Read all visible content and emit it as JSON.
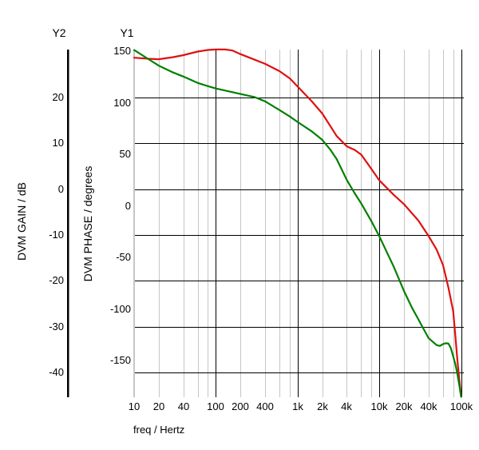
{
  "chart_data": {
    "type": "line",
    "title": "",
    "x_axis": {
      "label": "freq / Hertz",
      "scale": "log",
      "min": 10,
      "max": 100000,
      "tick_values": [
        10,
        20,
        40,
        100,
        200,
        400,
        1000,
        2000,
        4000,
        10000,
        20000,
        40000,
        100000
      ],
      "tick_labels": [
        "10",
        "20",
        "40",
        "100",
        "200",
        "400",
        "1k",
        "2k",
        "4k",
        "10k",
        "20k",
        "40k",
        "100k"
      ],
      "minor_grid_multiples": [
        2,
        4,
        6,
        8
      ],
      "major_grid_values": [
        100,
        1000,
        10000,
        100000
      ]
    },
    "y1_axis": {
      "name": "Y1",
      "label": "DVM PHASE / degrees",
      "ticks": [
        150,
        100,
        50,
        0,
        -50,
        -100,
        -150
      ],
      "top_value": 151.9,
      "bottom_value": -185.3,
      "gridlines": false
    },
    "y2_axis": {
      "name": "Y2",
      "label": "DVM GAIN / dB",
      "ticks": [
        20,
        10,
        0,
        -10,
        -20,
        -30,
        -40
      ],
      "top_value": 30.5,
      "bottom_value": -45.4,
      "gridlines": true
    },
    "grid_color": "#c6c6c6",
    "axis_color": "#000000",
    "series": [
      {
        "name": "DVM PHASE",
        "axis": "y1",
        "color": "#e01010",
        "points": [
          [
            10,
            144
          ],
          [
            15,
            143
          ],
          [
            20,
            142.5
          ],
          [
            30,
            144.5
          ],
          [
            40,
            146.5
          ],
          [
            60,
            150
          ],
          [
            80,
            151.5
          ],
          [
            100,
            152
          ],
          [
            130,
            152
          ],
          [
            160,
            151
          ],
          [
            200,
            147.5
          ],
          [
            300,
            142
          ],
          [
            400,
            138
          ],
          [
            600,
            131
          ],
          [
            800,
            124
          ],
          [
            1000,
            116
          ],
          [
            1500,
            101.5
          ],
          [
            2000,
            90
          ],
          [
            2500,
            78
          ],
          [
            3000,
            68
          ],
          [
            4000,
            58
          ],
          [
            5000,
            54.5
          ],
          [
            6000,
            50
          ],
          [
            8000,
            36
          ],
          [
            10000,
            25
          ],
          [
            15000,
            11
          ],
          [
            20000,
            2
          ],
          [
            30000,
            -14
          ],
          [
            40000,
            -29
          ],
          [
            50000,
            -42
          ],
          [
            60000,
            -57
          ],
          [
            70000,
            -79
          ],
          [
            80000,
            -102
          ],
          [
            85000,
            -126
          ],
          [
            90000,
            -149
          ],
          [
            95000,
            -168
          ],
          [
            100000,
            -184
          ]
        ]
      },
      {
        "name": "DVM GAIN",
        "axis": "y2",
        "color": "#008000",
        "points": [
          [
            10,
            30.4
          ],
          [
            15,
            28.4
          ],
          [
            20,
            27
          ],
          [
            30,
            25.5
          ],
          [
            40,
            24.6
          ],
          [
            60,
            23.2
          ],
          [
            80,
            22.5
          ],
          [
            100,
            22
          ],
          [
            150,
            21.3
          ],
          [
            200,
            20.8
          ],
          [
            300,
            20.1
          ],
          [
            400,
            19.2
          ],
          [
            600,
            17.3
          ],
          [
            800,
            15.9
          ],
          [
            1000,
            14.7
          ],
          [
            1500,
            12.6
          ],
          [
            2000,
            10.8
          ],
          [
            2500,
            8.7
          ],
          [
            3000,
            6.6
          ],
          [
            4000,
            2
          ],
          [
            5000,
            -0.9
          ],
          [
            6000,
            -3.1
          ],
          [
            8000,
            -7
          ],
          [
            10000,
            -10.3
          ],
          [
            15000,
            -16.9
          ],
          [
            20000,
            -22.2
          ],
          [
            25000,
            -25.8
          ],
          [
            30000,
            -28.4
          ],
          [
            40000,
            -32.5
          ],
          [
            50000,
            -34
          ],
          [
            55000,
            -34.2
          ],
          [
            60000,
            -33.8
          ],
          [
            65000,
            -33.6
          ],
          [
            70000,
            -33.7
          ],
          [
            75000,
            -34.7
          ],
          [
            80000,
            -36.5
          ],
          [
            85000,
            -38.2
          ],
          [
            90000,
            -40.3
          ],
          [
            95000,
            -42.7
          ],
          [
            100000,
            -45.3
          ]
        ]
      }
    ]
  }
}
